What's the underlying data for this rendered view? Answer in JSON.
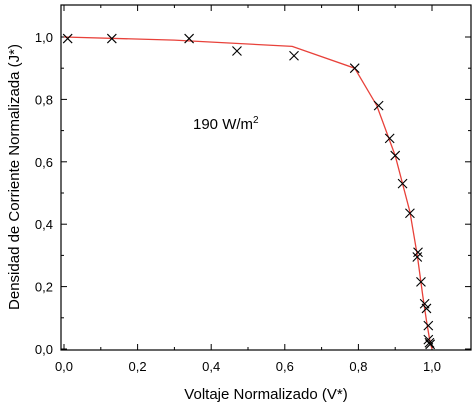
{
  "chart_data": {
    "type": "scatter",
    "xlabel": "Voltaje Normalizado (V*)",
    "ylabel": "Densidad de Corriente Normalizada (J*)",
    "xlim": [
      0,
      1.05
    ],
    "ylim": [
      0,
      1.1
    ],
    "x_ticks": [
      "0,0",
      "0,2",
      "0,4",
      "0,6",
      "0,8",
      "1,0"
    ],
    "y_ticks": [
      "0,0",
      "0,2",
      "0,4",
      "0,6",
      "0,8",
      "1,0"
    ],
    "annotation": {
      "text": "190 W/m",
      "superscript": "2"
    },
    "grid": false,
    "series": [
      {
        "marker": "x",
        "color": "#000000",
        "x": [
          0.01,
          0.13,
          0.34,
          0.47,
          0.625,
          0.79,
          0.855,
          0.885,
          0.9,
          0.92,
          0.94,
          0.96,
          0.962,
          0.97,
          0.98,
          0.985,
          0.99,
          0.99,
          0.993,
          0.995
        ],
        "y": [
          0.995,
          0.995,
          0.995,
          0.955,
          0.94,
          0.9,
          0.78,
          0.675,
          0.62,
          0.53,
          0.435,
          0.295,
          0.31,
          0.215,
          0.145,
          0.13,
          0.075,
          0.03,
          0.02,
          0.015
        ]
      },
      {
        "type": "line",
        "color": "#e8413a",
        "x": [
          0.0,
          0.3,
          0.62,
          0.79,
          0.85,
          0.9,
          0.94,
          0.96,
          0.975,
          0.985,
          0.995,
          1.0
        ],
        "y": [
          1.0,
          0.99,
          0.97,
          0.9,
          0.78,
          0.62,
          0.44,
          0.3,
          0.17,
          0.09,
          0.02,
          0.0
        ]
      }
    ]
  }
}
